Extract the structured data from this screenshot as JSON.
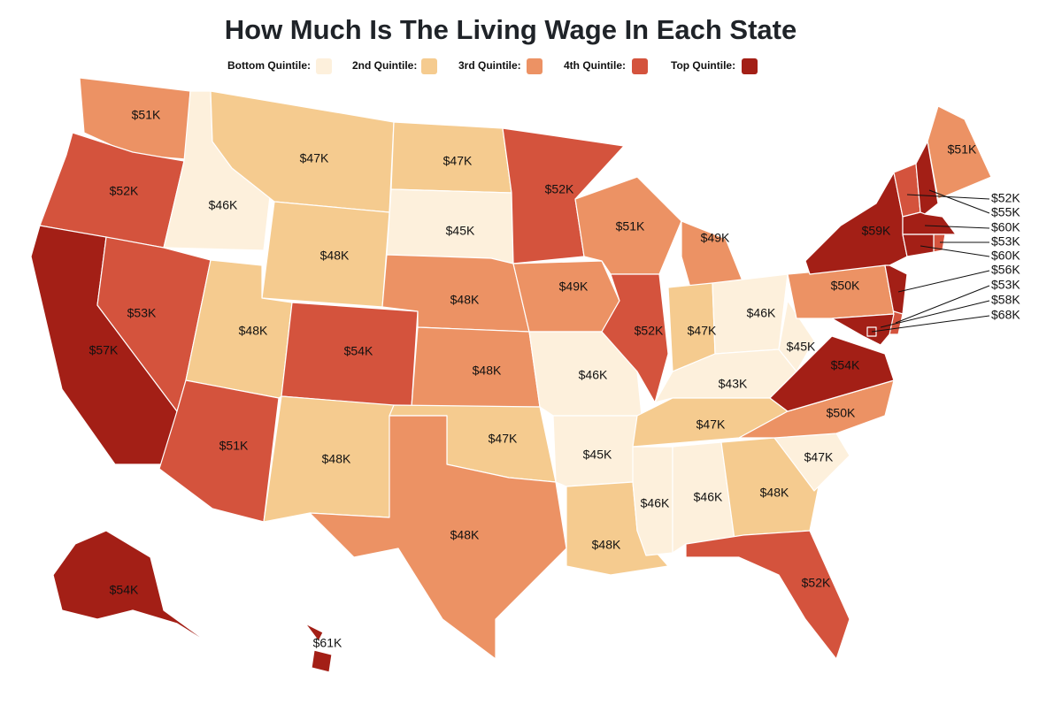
{
  "title": "How Much Is The Living Wage In Each State",
  "legend": [
    {
      "label": "Bottom Quintile:",
      "color": "#fdf0dc"
    },
    {
      "label": "2nd Quintile:",
      "color": "#f5cb8f"
    },
    {
      "label": "3rd Quintile:",
      "color": "#ec9264"
    },
    {
      "label": "4th Quintile:",
      "color": "#d4533d"
    },
    {
      "label": "Top Quintile:",
      "color": "#a31f16"
    }
  ],
  "regions": [
    {
      "label": "$51K",
      "quintile": 2
    },
    {
      "label": "$52K",
      "quintile": 3
    },
    {
      "label": "$57K",
      "quintile": 4
    },
    {
      "label": "$46K",
      "quintile": 0
    },
    {
      "label": "$53K",
      "quintile": 3
    },
    {
      "label": "$47K",
      "quintile": 1
    },
    {
      "label": "$48K",
      "quintile": 1
    },
    {
      "label": "$48K",
      "quintile": 1
    },
    {
      "label": "$51K",
      "quintile": 3
    },
    {
      "label": "$54K",
      "quintile": 3
    },
    {
      "label": "$48K",
      "quintile": 1
    },
    {
      "label": "$47K",
      "quintile": 1
    },
    {
      "label": "$45K",
      "quintile": 0
    },
    {
      "label": "$48K",
      "quintile": 2
    },
    {
      "label": "$48K",
      "quintile": 2
    },
    {
      "label": "$47K",
      "quintile": 1
    },
    {
      "label": "$48K",
      "quintile": 2
    },
    {
      "label": "$52K",
      "quintile": 3
    },
    {
      "label": "$49K",
      "quintile": 2
    },
    {
      "label": "$46K",
      "quintile": 0
    },
    {
      "label": "$45K",
      "quintile": 0
    },
    {
      "label": "$48K",
      "quintile": 1
    },
    {
      "label": "$51K",
      "quintile": 2
    },
    {
      "label": "$52K",
      "quintile": 3
    },
    {
      "label": "$49K",
      "quintile": 2
    },
    {
      "label": "$47K",
      "quintile": 1
    },
    {
      "label": "$46K",
      "quintile": 0
    },
    {
      "label": "$43K",
      "quintile": 0
    },
    {
      "label": "$47K",
      "quintile": 1
    },
    {
      "label": "$46K",
      "quintile": 0
    },
    {
      "label": "$46K",
      "quintile": 0
    },
    {
      "label": "$48K",
      "quintile": 1
    },
    {
      "label": "$52K",
      "quintile": 3
    },
    {
      "label": "$47K",
      "quintile": 0
    },
    {
      "label": "$50K",
      "quintile": 2
    },
    {
      "label": "$54K",
      "quintile": 4
    },
    {
      "label": "$45K",
      "quintile": 0
    },
    {
      "label": "$50K",
      "quintile": 2
    },
    {
      "label": "$59K",
      "quintile": 4
    },
    {
      "label": "$51K",
      "quintile": 2
    },
    {
      "label": "$54K",
      "quintile": 4
    },
    {
      "label": "$61K",
      "quintile": 4
    },
    {
      "label": "$52K",
      "quintile": 3
    },
    {
      "label": "$55K",
      "quintile": 4
    },
    {
      "label": "$60K",
      "quintile": 4
    },
    {
      "label": "$53K",
      "quintile": 3
    },
    {
      "label": "$60K",
      "quintile": 4
    },
    {
      "label": "$56K",
      "quintile": 4
    },
    {
      "label": "$53K",
      "quintile": 3
    },
    {
      "label": "$58K",
      "quintile": 4
    },
    {
      "label": "$68K",
      "quintile": 4
    }
  ]
}
